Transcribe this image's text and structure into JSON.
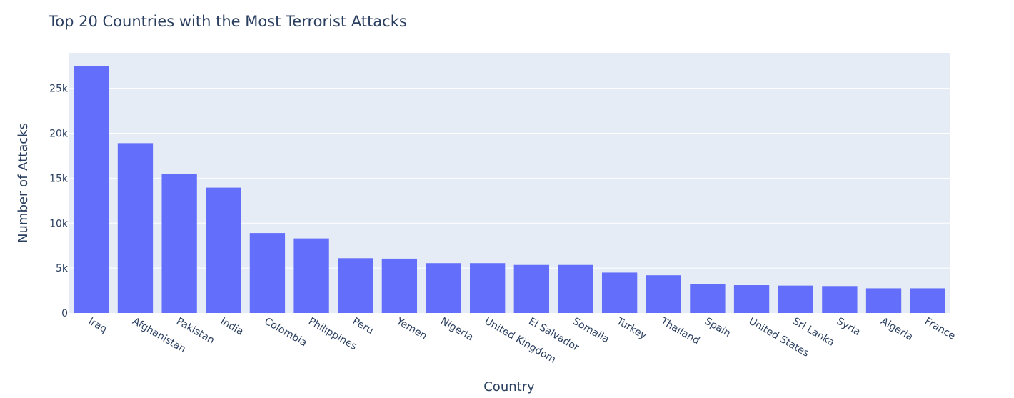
{
  "chart_data": {
    "type": "bar",
    "title": "Top 20 Countries with the Most Terrorist Attacks",
    "xlabel": "Country",
    "ylabel": "Number of Attacks",
    "categories": [
      "Iraq",
      "Afghanistan",
      "Pakistan",
      "India",
      "Colombia",
      "Philippines",
      "Peru",
      "Yemen",
      "Nigeria",
      "United Kingdom",
      "El Salvador",
      "Somalia",
      "Turkey",
      "Thailand",
      "Spain",
      "United States",
      "Sri Lanka",
      "Syria",
      "Algeria",
      "France"
    ],
    "values": [
      27500,
      18900,
      15500,
      13950,
      8900,
      8300,
      6100,
      6050,
      5550,
      5550,
      5350,
      5350,
      4500,
      4200,
      3250,
      3100,
      3050,
      3000,
      2750,
      2750
    ],
    "ylim": [
      0,
      28950
    ],
    "yticks": [
      0,
      5000,
      10000,
      15000,
      20000,
      25000
    ],
    "ytick_labels": [
      "0",
      "5k",
      "10k",
      "15k",
      "20k",
      "25k"
    ],
    "grid": true,
    "legend": "none",
    "colors": {
      "bar": "#636efa",
      "plot_background": "#e5ecf6",
      "grid": "#ffffff",
      "text": "#2a3f5f"
    }
  }
}
